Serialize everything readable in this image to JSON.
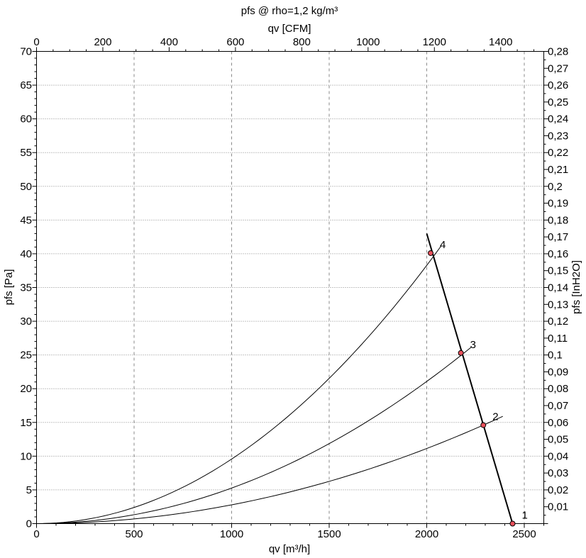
{
  "chart_data": {
    "type": "line",
    "title": "pfs @ rho=1,2 kg/m³",
    "xlabel": "qv [m³/h]",
    "x2label": "qv [CFM]",
    "ylabel": "pfs [Pa]",
    "y2label": "pfs [InH2O]",
    "xlim": [
      0,
      2600
    ],
    "ylim": [
      0,
      70
    ],
    "x2lim": [
      0,
      1530
    ],
    "y2lim": [
      0,
      0.28
    ],
    "x_ticks": [
      0,
      500,
      1000,
      1500,
      2000,
      2500
    ],
    "x_tick_labels": [
      "0",
      "500",
      "1000",
      "1500",
      "2000",
      "2500"
    ],
    "y_ticks": [
      0,
      5,
      10,
      15,
      20,
      25,
      30,
      35,
      40,
      45,
      50,
      55,
      60,
      65,
      70
    ],
    "y_tick_labels": [
      "0",
      "5",
      "10",
      "15",
      "20",
      "25",
      "30",
      "35",
      "40",
      "45",
      "50",
      "55",
      "60",
      "65",
      "70"
    ],
    "x2_ticks": [
      0,
      200,
      400,
      600,
      800,
      1000,
      1200,
      1400
    ],
    "x2_tick_labels": [
      "0",
      "200",
      "400",
      "600",
      "800",
      "1000",
      "1200",
      "1400"
    ],
    "y2_ticks": [
      0.01,
      0.02,
      0.03,
      0.04,
      0.05,
      0.06,
      0.07,
      0.08,
      0.09,
      0.1,
      0.11,
      0.12,
      0.13,
      0.14,
      0.15,
      0.16,
      0.17,
      0.18,
      0.19,
      0.2,
      0.21,
      0.22,
      0.23,
      0.24,
      0.25,
      0.26,
      0.27,
      0.28
    ],
    "y2_tick_labels": [
      "0,01",
      "0,02",
      "0,03",
      "0,04",
      "0,05",
      "0,06",
      "0,07",
      "0,08",
      "0,09",
      "0,1",
      "0,11",
      "0,12",
      "0,13",
      "0,14",
      "0,15",
      "0,16",
      "0,17",
      "0,18",
      "0,19",
      "0,2",
      "0,21",
      "0,22",
      "0,23",
      "0,24",
      "0,25",
      "0,26",
      "0,27",
      "0,28"
    ],
    "grid": true,
    "fan_curve": {
      "x": [
        2000,
        2440
      ],
      "y": [
        43,
        0
      ]
    },
    "system_curves": [
      {
        "label": "2",
        "x_end": 2390,
        "y_end": 15.9
      },
      {
        "label": "3",
        "x_end": 2230,
        "y_end": 26.2
      },
      {
        "label": "4",
        "x_end": 2075,
        "y_end": 41.2
      }
    ],
    "operating_points": [
      {
        "label": "1",
        "x": 2440,
        "y": 0
      },
      {
        "label": "2",
        "x": 2290,
        "y": 14.6
      },
      {
        "label": "3",
        "x": 2175,
        "y": 25.3
      },
      {
        "label": "4",
        "x": 2020,
        "y": 40.1
      }
    ],
    "colors": {
      "curve": "#000000",
      "point_fill": "#e8505b",
      "grid": "#8a8a8a"
    }
  }
}
